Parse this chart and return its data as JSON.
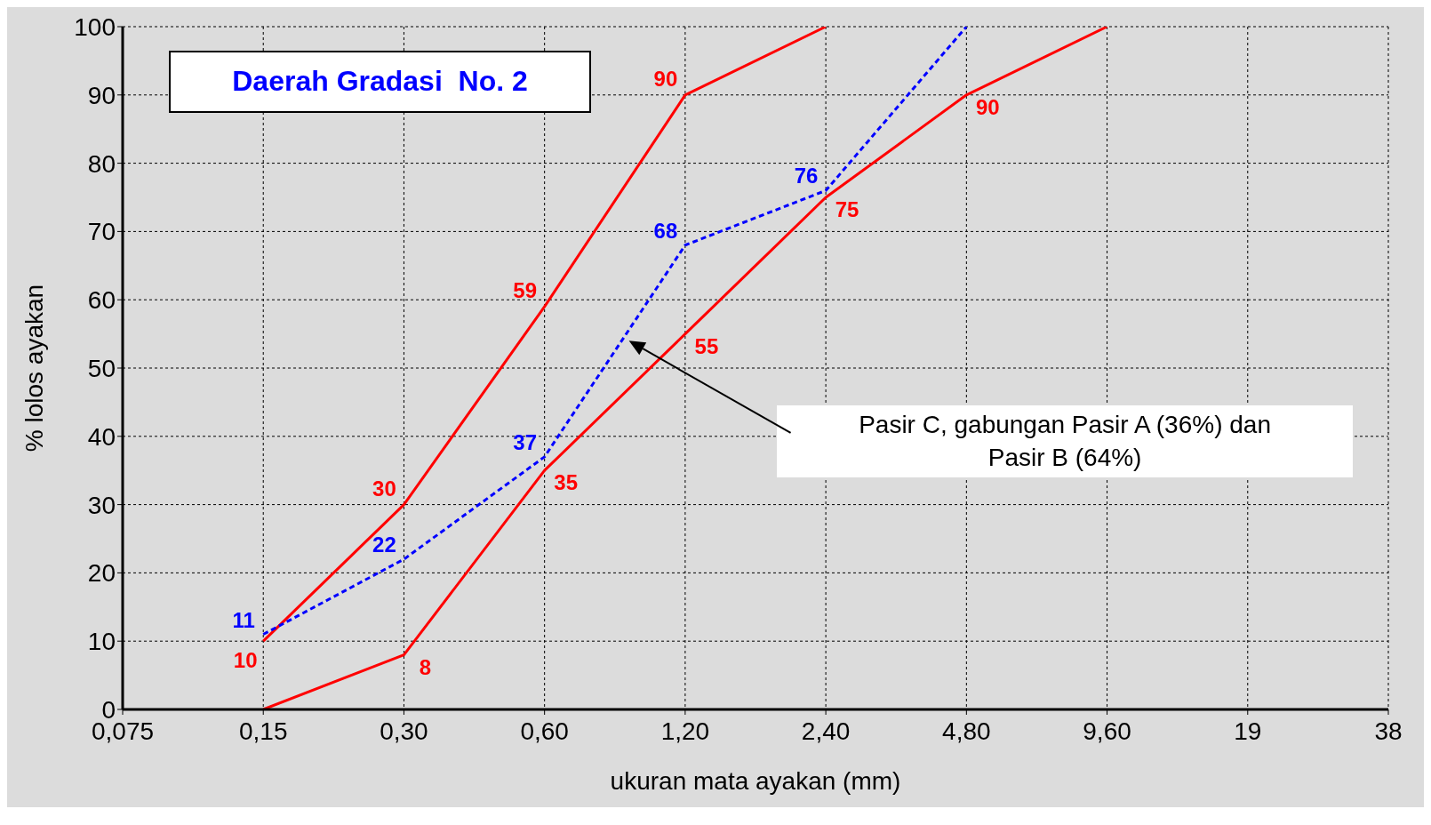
{
  "chart_data": {
    "type": "line",
    "title": "Daerah Gradasi  No. 2",
    "xlabel": "ukuran mata ayakan (mm)",
    "ylabel": "% lolos ayakan",
    "categories": [
      "0,075",
      "0,15",
      "0,30",
      "0,60",
      "1,20",
      "2,40",
      "4,80",
      "9,60",
      "19",
      "38"
    ],
    "series": [
      {
        "color": "#ff0000",
        "line_style": "solid",
        "values": [
          null,
          10,
          30,
          59,
          90,
          100,
          null,
          null,
          null,
          null
        ],
        "value_labels": [
          null,
          "10",
          "30",
          "59",
          "90",
          null,
          null,
          null,
          null,
          null
        ]
      },
      {
        "color": "#ff0000",
        "line_style": "solid",
        "values": [
          null,
          0,
          8,
          35,
          55,
          75,
          90,
          100,
          null,
          null
        ],
        "value_labels": [
          null,
          null,
          "8",
          "35",
          "55",
          "75",
          "90",
          null,
          null,
          null
        ]
      },
      {
        "color": "#0000ff",
        "line_style": "dashed",
        "values": [
          null,
          11,
          22,
          37,
          68,
          76,
          100,
          null,
          null,
          null
        ],
        "value_labels": [
          null,
          "11",
          "22",
          "37",
          "68",
          "76",
          null,
          null,
          null,
          null
        ]
      }
    ],
    "ylim": [
      0,
      100
    ],
    "yticks": [
      0,
      10,
      20,
      30,
      40,
      50,
      60,
      70,
      80,
      90,
      100
    ],
    "grid": true,
    "marker": "none",
    "annotations": [
      "Pasir C, gabungan Pasir A (36%) dan Pasir B (64%)"
    ]
  }
}
